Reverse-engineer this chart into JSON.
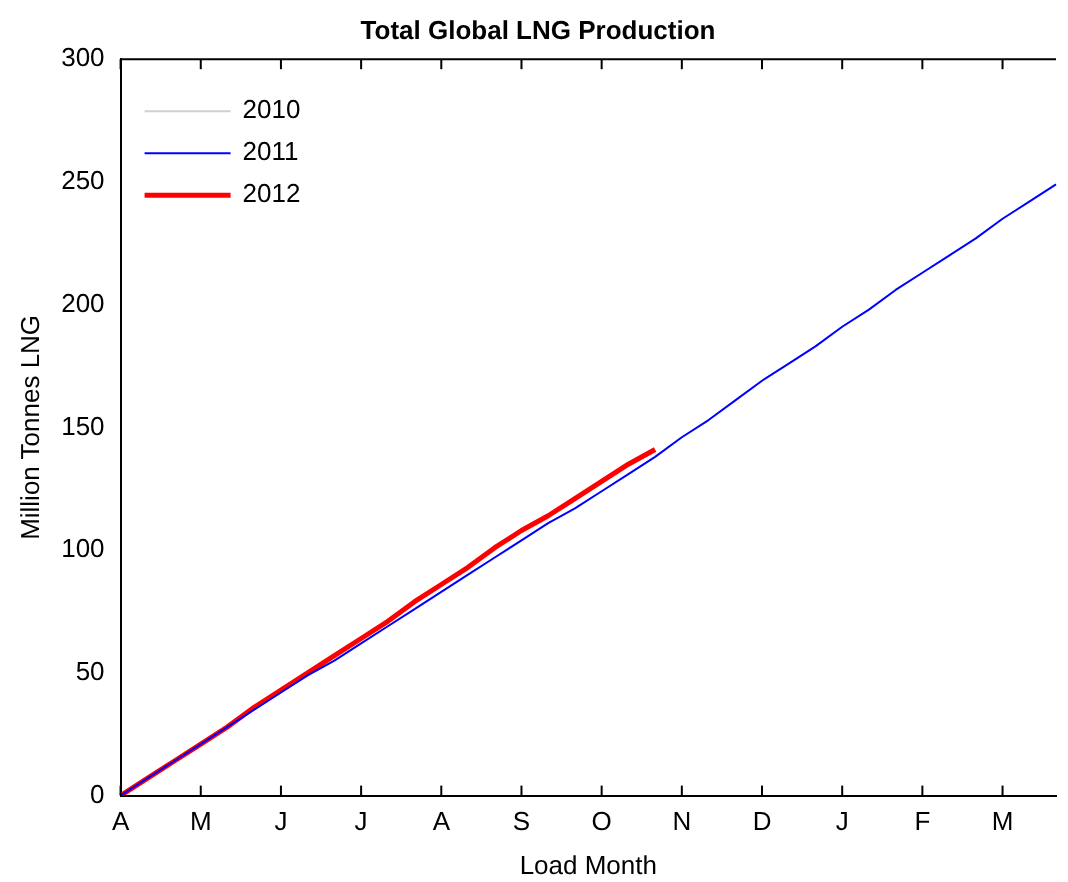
{
  "chart_data": {
    "type": "line",
    "title": "Total Global LNG Production",
    "xlabel": "Load Month",
    "ylabel": "Million Tonnes LNG",
    "categories": [
      "A",
      null,
      null,
      "M",
      null,
      null,
      "J",
      null,
      null,
      "J",
      null,
      null,
      "A",
      null,
      null,
      "S",
      null,
      null,
      "O",
      null,
      null,
      "N",
      null,
      null,
      "D",
      null,
      null,
      "J",
      null,
      null,
      "F",
      null,
      null,
      "M",
      null,
      null
    ],
    "ylim": [
      0,
      300
    ],
    "yticks": [
      0,
      50,
      100,
      150,
      200,
      250,
      300
    ],
    "grid": false,
    "legend": "top left",
    "marker": "none",
    "line_style": "solid",
    "series": [
      {
        "name": "2010",
        "color": "#d0d0d0",
        "values": [
          null,
          null,
          null,
          null,
          null,
          null,
          null,
          null,
          null,
          null,
          null,
          null,
          null,
          null,
          null,
          null,
          null,
          null,
          null,
          null,
          null,
          null,
          null,
          null,
          null,
          null,
          null,
          null,
          null,
          null,
          null,
          null,
          null,
          null,
          null,
          null
        ]
      },
      {
        "name": "2011",
        "color": "#0000ff",
        "values": [
          0,
          7,
          14,
          21,
          28,
          35,
          42,
          49,
          55,
          62,
          69,
          76,
          83,
          90,
          97,
          104,
          111,
          117,
          124,
          131,
          138,
          146,
          153,
          161,
          169,
          176,
          183,
          191,
          198,
          206,
          213,
          220,
          227,
          235,
          242,
          249
        ]
      },
      {
        "name": "2012",
        "color": "#ff0000",
        "values": [
          0,
          7,
          14,
          21,
          28,
          36,
          43,
          50,
          57,
          64,
          71,
          79,
          86,
          93,
          101,
          108,
          114,
          121,
          128,
          135,
          141,
          null,
          null,
          null,
          null,
          null,
          null,
          null,
          null,
          null,
          null,
          null,
          null,
          null,
          null,
          null
        ]
      }
    ]
  }
}
